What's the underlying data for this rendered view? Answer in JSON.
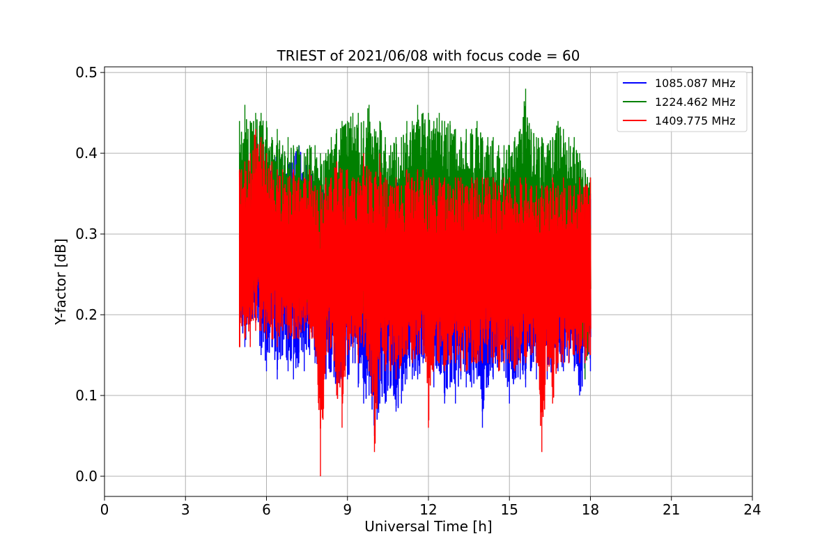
{
  "chart_data": {
    "type": "line",
    "title": "TRIEST of 2021/06/08 with focus code = 60",
    "xlabel": "Universal Time [h]",
    "ylabel": "Y-factor [dB]",
    "xlim": [
      0,
      24
    ],
    "ylim": [
      -0.025,
      0.507
    ],
    "xticks": [
      0,
      3,
      6,
      9,
      12,
      15,
      18,
      21,
      24
    ],
    "xtick_labels": [
      "0",
      "3",
      "6",
      "9",
      "12",
      "15",
      "18",
      "21",
      "24"
    ],
    "yticks": [
      0.0,
      0.1,
      0.2,
      0.3,
      0.4,
      0.5
    ],
    "ytick_labels": [
      "0.0",
      "0.1",
      "0.2",
      "0.3",
      "0.4",
      "0.5"
    ],
    "grid": true,
    "legend_position": "top-right",
    "data_x_range": [
      5.0,
      18.0
    ],
    "series": [
      {
        "name": "1085.087 MHz",
        "color": "#0000ff",
        "x": [
          5.0,
          5.2,
          5.4,
          5.6,
          5.8,
          6.0,
          6.2,
          6.4,
          6.6,
          6.8,
          7.0,
          7.2,
          7.4,
          7.6,
          7.8,
          8.0,
          8.2,
          8.4,
          8.6,
          8.8,
          9.0,
          9.2,
          9.4,
          9.6,
          9.8,
          10.0,
          10.2,
          10.4,
          10.6,
          10.8,
          11.0,
          11.2,
          11.4,
          11.6,
          11.8,
          12.0,
          12.2,
          12.4,
          12.6,
          12.8,
          13.0,
          13.2,
          13.4,
          13.6,
          13.8,
          14.0,
          14.2,
          14.4,
          14.6,
          14.8,
          15.0,
          15.2,
          15.4,
          15.6,
          15.8,
          16.0,
          16.2,
          16.4,
          16.6,
          16.8,
          17.0,
          17.2,
          17.4,
          17.6,
          17.8,
          18.0
        ],
        "min": [
          0.19,
          0.16,
          0.17,
          0.19,
          0.15,
          0.13,
          0.16,
          0.12,
          0.15,
          0.13,
          0.12,
          0.14,
          0.13,
          0.15,
          0.14,
          0.13,
          0.12,
          0.13,
          0.1,
          0.11,
          0.12,
          0.14,
          0.11,
          0.09,
          0.1,
          0.05,
          0.09,
          0.09,
          0.11,
          0.08,
          0.09,
          0.12,
          0.12,
          0.12,
          0.14,
          0.13,
          0.11,
          0.13,
          0.09,
          0.11,
          0.09,
          0.12,
          0.11,
          0.11,
          0.12,
          0.06,
          0.11,
          0.12,
          0.13,
          0.13,
          0.09,
          0.12,
          0.12,
          0.11,
          0.13,
          0.12,
          0.14,
          0.12,
          0.13,
          0.13,
          0.13,
          0.14,
          0.13,
          0.1,
          0.12,
          0.13
        ],
        "max": [
          0.35,
          0.38,
          0.39,
          0.42,
          0.4,
          0.4,
          0.39,
          0.4,
          0.4,
          0.39,
          0.4,
          0.41,
          0.39,
          0.38,
          0.38,
          0.37,
          0.38,
          0.37,
          0.36,
          0.36,
          0.37,
          0.37,
          0.36,
          0.37,
          0.36,
          0.36,
          0.37,
          0.36,
          0.36,
          0.37,
          0.36,
          0.37,
          0.36,
          0.36,
          0.37,
          0.37,
          0.36,
          0.36,
          0.36,
          0.36,
          0.37,
          0.36,
          0.36,
          0.37,
          0.36,
          0.35,
          0.36,
          0.37,
          0.36,
          0.35,
          0.36,
          0.36,
          0.35,
          0.36,
          0.36,
          0.36,
          0.36,
          0.36,
          0.35,
          0.36,
          0.36,
          0.35,
          0.36,
          0.35,
          0.35,
          0.35
        ]
      },
      {
        "name": "1224.462 MHz",
        "color": "#008000",
        "x": [
          5.0,
          5.2,
          5.4,
          5.6,
          5.8,
          6.0,
          6.2,
          6.4,
          6.6,
          6.8,
          7.0,
          7.2,
          7.4,
          7.6,
          7.8,
          8.0,
          8.2,
          8.4,
          8.6,
          8.8,
          9.0,
          9.2,
          9.4,
          9.6,
          9.8,
          10.0,
          10.2,
          10.4,
          10.6,
          10.8,
          11.0,
          11.2,
          11.4,
          11.6,
          11.8,
          12.0,
          12.2,
          12.4,
          12.6,
          12.8,
          13.0,
          13.2,
          13.4,
          13.6,
          13.8,
          14.0,
          14.2,
          14.4,
          14.6,
          14.8,
          15.0,
          15.2,
          15.4,
          15.6,
          15.8,
          16.0,
          16.2,
          16.4,
          16.6,
          16.8,
          17.0,
          17.2,
          17.4,
          17.6,
          17.8,
          18.0
        ],
        "min": [
          0.21,
          0.2,
          0.21,
          0.22,
          0.22,
          0.22,
          0.22,
          0.21,
          0.21,
          0.2,
          0.21,
          0.2,
          0.21,
          0.2,
          0.2,
          0.17,
          0.19,
          0.2,
          0.19,
          0.2,
          0.2,
          0.21,
          0.2,
          0.19,
          0.19,
          0.19,
          0.19,
          0.19,
          0.19,
          0.19,
          0.2,
          0.19,
          0.19,
          0.2,
          0.2,
          0.19,
          0.2,
          0.2,
          0.19,
          0.19,
          0.2,
          0.19,
          0.19,
          0.19,
          0.2,
          0.19,
          0.19,
          0.19,
          0.19,
          0.19,
          0.19,
          0.19,
          0.19,
          0.19,
          0.19,
          0.19,
          0.19,
          0.19,
          0.19,
          0.19,
          0.19,
          0.19,
          0.19,
          0.18,
          0.12,
          0.18
        ],
        "max": [
          0.44,
          0.46,
          0.44,
          0.45,
          0.45,
          0.44,
          0.42,
          0.43,
          0.41,
          0.42,
          0.41,
          0.41,
          0.4,
          0.41,
          0.41,
          0.4,
          0.4,
          0.42,
          0.43,
          0.44,
          0.44,
          0.45,
          0.45,
          0.44,
          0.46,
          0.43,
          0.44,
          0.42,
          0.41,
          0.42,
          0.42,
          0.44,
          0.44,
          0.46,
          0.45,
          0.45,
          0.44,
          0.45,
          0.44,
          0.44,
          0.43,
          0.42,
          0.43,
          0.43,
          0.44,
          0.42,
          0.42,
          0.42,
          0.41,
          0.41,
          0.41,
          0.42,
          0.43,
          0.48,
          0.43,
          0.42,
          0.42,
          0.41,
          0.42,
          0.44,
          0.43,
          0.42,
          0.42,
          0.4,
          0.38,
          0.37
        ]
      },
      {
        "name": "1409.775 MHz",
        "color": "#ff0000",
        "x": [
          5.0,
          5.2,
          5.4,
          5.6,
          5.8,
          6.0,
          6.2,
          6.4,
          6.6,
          6.8,
          7.0,
          7.2,
          7.4,
          7.6,
          7.8,
          8.0,
          8.2,
          8.4,
          8.6,
          8.8,
          9.0,
          9.2,
          9.4,
          9.6,
          9.8,
          10.0,
          10.2,
          10.4,
          10.6,
          10.8,
          11.0,
          11.2,
          11.4,
          11.6,
          11.8,
          12.0,
          12.2,
          12.4,
          12.6,
          12.8,
          13.0,
          13.2,
          13.4,
          13.6,
          13.8,
          14.0,
          14.2,
          14.4,
          14.6,
          14.8,
          15.0,
          15.2,
          15.4,
          15.6,
          15.8,
          16.0,
          16.2,
          16.4,
          16.6,
          16.8,
          17.0,
          17.2,
          17.4,
          17.6,
          17.8,
          18.0
        ],
        "min": [
          0.16,
          0.17,
          0.16,
          0.18,
          0.18,
          0.17,
          0.17,
          0.16,
          0.18,
          0.17,
          0.17,
          0.17,
          0.18,
          0.17,
          0.16,
          0.0,
          0.15,
          0.16,
          0.1,
          0.06,
          0.15,
          0.16,
          0.14,
          0.16,
          0.13,
          0.03,
          0.12,
          0.13,
          0.13,
          0.12,
          0.14,
          0.15,
          0.14,
          0.15,
          0.15,
          0.06,
          0.14,
          0.14,
          0.13,
          0.14,
          0.14,
          0.13,
          0.13,
          0.14,
          0.14,
          0.14,
          0.14,
          0.14,
          0.13,
          0.14,
          0.14,
          0.13,
          0.14,
          0.14,
          0.15,
          0.14,
          0.03,
          0.13,
          0.09,
          0.14,
          0.14,
          0.14,
          0.15,
          0.14,
          0.14,
          0.15
        ],
        "max": [
          0.38,
          0.39,
          0.4,
          0.43,
          0.42,
          0.4,
          0.39,
          0.38,
          0.38,
          0.37,
          0.38,
          0.37,
          0.37,
          0.38,
          0.36,
          0.36,
          0.37,
          0.37,
          0.39,
          0.38,
          0.38,
          0.37,
          0.37,
          0.4,
          0.38,
          0.37,
          0.4,
          0.37,
          0.36,
          0.37,
          0.36,
          0.38,
          0.37,
          0.38,
          0.38,
          0.37,
          0.37,
          0.37,
          0.37,
          0.36,
          0.37,
          0.37,
          0.36,
          0.37,
          0.37,
          0.37,
          0.37,
          0.37,
          0.36,
          0.37,
          0.37,
          0.36,
          0.37,
          0.37,
          0.36,
          0.36,
          0.36,
          0.36,
          0.37,
          0.36,
          0.37,
          0.36,
          0.36,
          0.37,
          0.36,
          0.37
        ]
      }
    ]
  }
}
